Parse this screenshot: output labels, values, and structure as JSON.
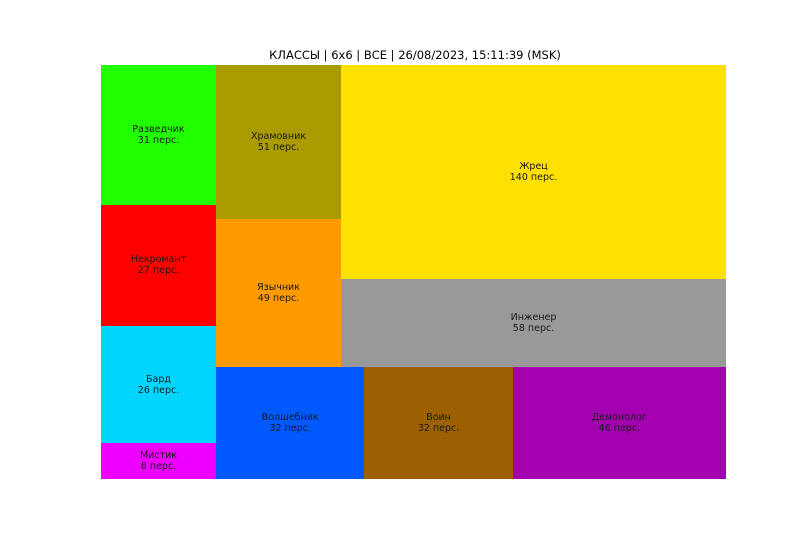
{
  "chart_data": {
    "type": "treemap",
    "title": "КЛАССЫ | 6x6 | ВСЕ | 26/08/2023, 15:11:39 (MSK)",
    "unit_suffix": "перс.",
    "items": [
      {
        "name": "Разведчик",
        "value": 31,
        "color": "#22ff00"
      },
      {
        "name": "Некромант",
        "value": 27,
        "color": "#ff0000"
      },
      {
        "name": "Бард",
        "value": 26,
        "color": "#00d5ff"
      },
      {
        "name": "Мистик",
        "value": 8,
        "color": "#ee00ff"
      },
      {
        "name": "Храмовник",
        "value": 51,
        "color": "#aa9c00"
      },
      {
        "name": "Язычник",
        "value": 49,
        "color": "#ff9a00"
      },
      {
        "name": "Жрец",
        "value": 140,
        "color": "#ffe100"
      },
      {
        "name": "Инженер",
        "value": 58,
        "color": "#999999"
      },
      {
        "name": "Волшебник",
        "value": 32,
        "color": "#0059ff"
      },
      {
        "name": "Воин",
        "value": 32,
        "color": "#9c6000"
      },
      {
        "name": "Демонолог",
        "value": 46,
        "color": "#a300b0"
      }
    ]
  }
}
